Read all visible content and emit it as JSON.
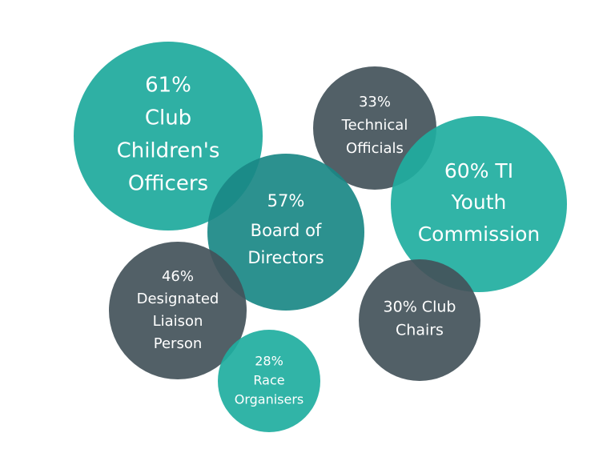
{
  "nodes": [
    {
      "lines": [
        "61%",
        "Club",
        "Children's",
        "Officers"
      ]
    },
    {
      "lines": [
        "33%",
        "Technical",
        "Officials"
      ]
    },
    {
      "lines": [
        "60% TI",
        "Youth",
        "Commission"
      ]
    },
    {
      "lines": [
        "57%",
        "Board of",
        "Directors"
      ]
    },
    {
      "lines": [
        "46%",
        "Designated",
        "Liaison",
        "Person"
      ]
    },
    {
      "lines": [
        "30% Club",
        "Chairs"
      ]
    },
    {
      "lines": [
        "28%",
        "Race",
        "Organisers"
      ]
    }
  ]
}
